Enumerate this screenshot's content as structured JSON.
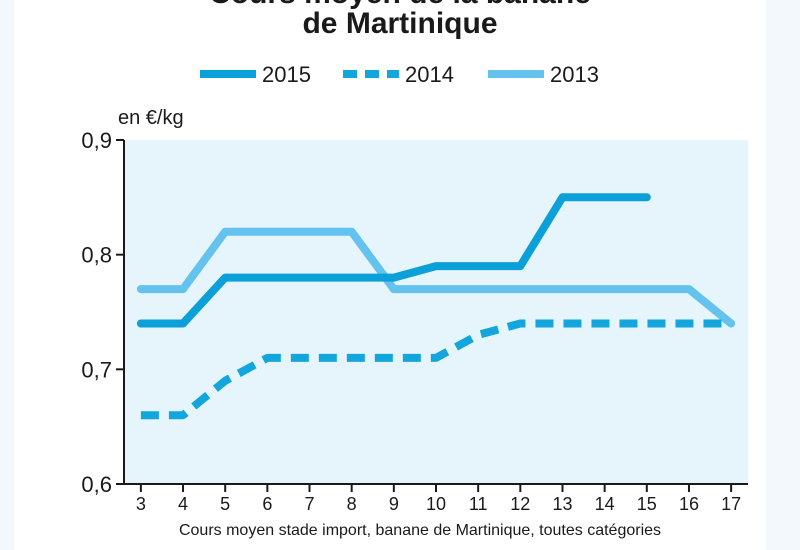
{
  "chart_data": {
    "type": "line",
    "title_top_partial": "Cours moyen de la banane",
    "title": "de Martinique",
    "ylabel": "en €/kg",
    "caption": "Cours moyen stade import, banane de Martinique, toutes catégories",
    "x": [
      3,
      4,
      5,
      6,
      7,
      8,
      9,
      10,
      11,
      12,
      13,
      14,
      15,
      16,
      17
    ],
    "xlim": [
      2.6,
      17.4
    ],
    "ylim": [
      0.6,
      0.9
    ],
    "yticks": [
      "0,6",
      "0,7",
      "0,8",
      "0,9"
    ],
    "ytick_values": [
      0.6,
      0.7,
      0.8,
      0.9
    ],
    "legend_position": "top",
    "grid": false,
    "series": [
      {
        "name": "2015",
        "style": "solid",
        "color": "#0ca0d8",
        "x": [
          3,
          4,
          5,
          6,
          7,
          8,
          9,
          10,
          11,
          12,
          13,
          14,
          15
        ],
        "values": [
          0.74,
          0.74,
          0.78,
          0.78,
          0.78,
          0.78,
          0.78,
          0.79,
          0.79,
          0.79,
          0.85,
          0.85,
          0.85
        ]
      },
      {
        "name": "2014",
        "style": "dashed",
        "color": "#12a6dc",
        "x": [
          3,
          4,
          5,
          6,
          7,
          8,
          9,
          10,
          11,
          12,
          13,
          14,
          15,
          16,
          17
        ],
        "values": [
          0.66,
          0.66,
          0.69,
          0.71,
          0.71,
          0.71,
          0.71,
          0.71,
          0.73,
          0.74,
          0.74,
          0.74,
          0.74,
          0.74,
          0.74
        ]
      },
      {
        "name": "2013",
        "style": "solid",
        "color": "#63c3ee",
        "x": [
          3,
          4,
          5,
          6,
          7,
          8,
          9,
          10,
          11,
          12,
          13,
          14,
          15,
          16,
          17
        ],
        "values": [
          0.77,
          0.77,
          0.82,
          0.82,
          0.82,
          0.82,
          0.77,
          0.77,
          0.77,
          0.77,
          0.77,
          0.77,
          0.77,
          0.77,
          0.74
        ]
      }
    ]
  }
}
